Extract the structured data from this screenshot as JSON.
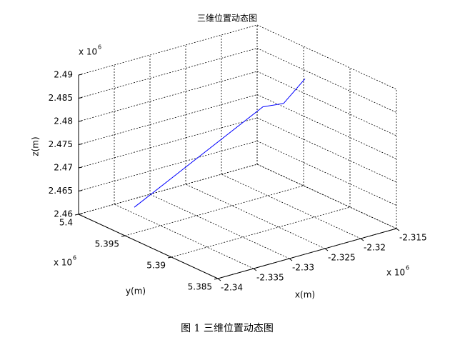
{
  "chart_data": {
    "type": "line3d",
    "title": "三维位置动态图",
    "series": [
      {
        "color": "#0000ff",
        "x": [
          -2.3361,
          -2.3233,
          -2.3204,
          -2.3187
        ],
        "y": [
          5.397,
          5.393,
          5.393,
          5.392
        ],
        "z": [
          2.4626,
          2.4824,
          2.4819,
          2.4874
        ]
      }
    ],
    "xlim": [
      -2.34,
      -2.315
    ],
    "xticks": [
      -2.34,
      -2.335,
      -2.33,
      -2.325,
      -2.32,
      -2.315
    ],
    "ylim": [
      5.385,
      5.4
    ],
    "yticks": [
      5.385,
      5.39,
      5.395,
      5.4
    ],
    "zlim": [
      2.46,
      2.49
    ],
    "zticks": [
      2.46,
      2.465,
      2.47,
      2.475,
      2.48,
      2.485,
      2.49
    ],
    "xlabel": "x(m)",
    "ylabel": "y(m)",
    "zlabel": "z(m)",
    "multiplier": "x 10",
    "multiplier_exponent": "6",
    "grid": true,
    "caption": "图 1  三维位置动态图"
  }
}
